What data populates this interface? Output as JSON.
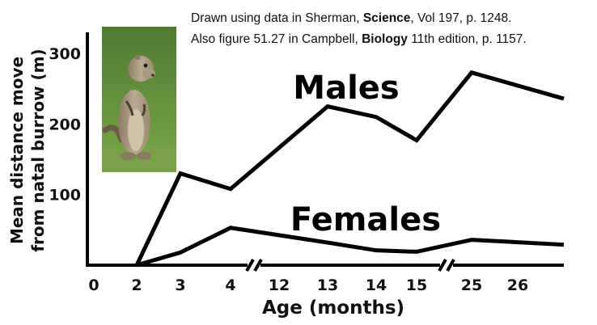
{
  "citation": {
    "line1": {
      "prefix": "Drawn using data in Sherman, ",
      "bold": "Science",
      "suffix": ", Vol 197, p. 1248."
    },
    "line2": {
      "prefix": "Also figure 51.27 in Campbell, ",
      "bold": "Biology",
      "suffix": " 11th edition, p. 1157."
    }
  },
  "photo": {
    "description": "ground-squirrel-photo"
  },
  "colors": {
    "line": "#000000",
    "grass": "#5f8a3a",
    "squirrel": "#a89a80"
  },
  "chart_data": {
    "type": "line",
    "title": "",
    "xlabel": "Age (months)",
    "ylabel_lines": [
      "Mean distance move",
      "from natal burrow (m)"
    ],
    "x_ticks": [
      "0",
      "2",
      "3",
      "4",
      "12",
      "13",
      "14",
      "15",
      "25",
      "26"
    ],
    "y_ticks": [
      100,
      200,
      300
    ],
    "ylim": [
      0,
      330
    ],
    "axis_breaks": [
      "between 4 and 12",
      "between 15 and 25"
    ],
    "series": [
      {
        "name": "Males",
        "points": [
          {
            "x": "2",
            "y": 0
          },
          {
            "x": "3",
            "y": 130
          },
          {
            "x": "4",
            "y": 108
          },
          {
            "x": "13",
            "y": 225
          },
          {
            "x": "14",
            "y": 210
          },
          {
            "x": "15",
            "y": 177
          },
          {
            "x": "25",
            "y": 273
          },
          {
            "x": "27",
            "y": 236
          }
        ]
      },
      {
        "name": "Females",
        "points": [
          {
            "x": "2",
            "y": 0
          },
          {
            "x": "3",
            "y": 18
          },
          {
            "x": "4",
            "y": 53
          },
          {
            "x": "13",
            "y": 32
          },
          {
            "x": "14",
            "y": 21
          },
          {
            "x": "15",
            "y": 19
          },
          {
            "x": "25",
            "y": 36
          },
          {
            "x": "27",
            "y": 29
          }
        ]
      }
    ]
  }
}
